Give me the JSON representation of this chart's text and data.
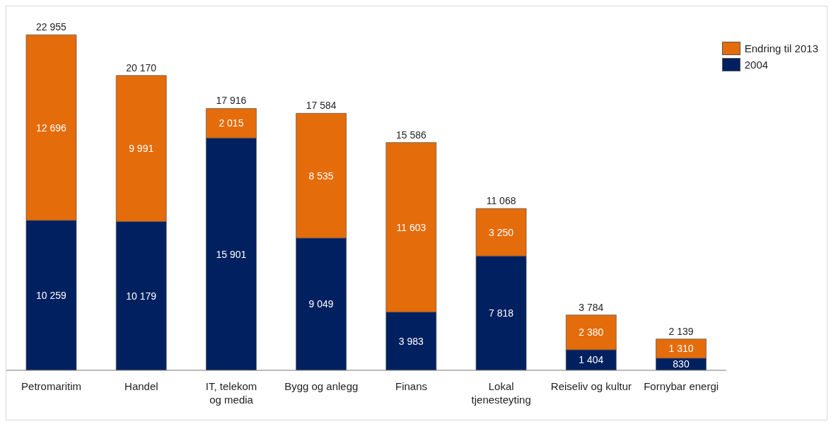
{
  "chart_data": {
    "type": "bar",
    "stacked": true,
    "categories": [
      "Petromaritim",
      "Handel",
      "IT, telekom og media",
      "Bygg og anlegg",
      "Finans",
      "Lokal tjenesteyting",
      "Reiseliv og kultur",
      "Fornybar energi"
    ],
    "series": [
      {
        "name": "2004",
        "color": "#002060",
        "values": [
          10259,
          10179,
          15901,
          9049,
          3983,
          7818,
          1404,
          830
        ],
        "value_labels": [
          "10 259",
          "10 179",
          "15 901",
          "9 049",
          "3 983",
          "7 818",
          "1 404",
          "830"
        ]
      },
      {
        "name": "Endring til 2013",
        "color": "#e46c0a",
        "values": [
          12696,
          9991,
          2015,
          8535,
          11603,
          3250,
          2380,
          1310
        ],
        "value_labels": [
          "12 696",
          "9 991",
          "2 015",
          "8 535",
          "11 603",
          "3 250",
          "2 380",
          "1 310"
        ]
      }
    ],
    "totals": [
      "22 955",
      "20 170",
      "17 916",
      "17 584",
      "15 586",
      "11 068",
      "3 784",
      "2 139"
    ],
    "legend": "top right",
    "grid": false
  }
}
